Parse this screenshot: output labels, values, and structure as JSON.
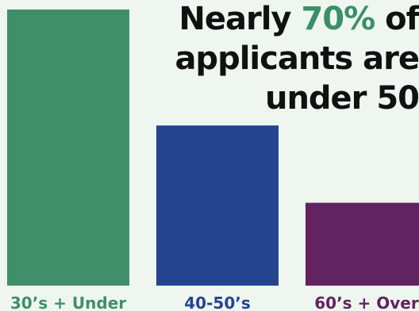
{
  "headline": {
    "line1_pre": "Nearly ",
    "line1_accent": "70%",
    "line1_post": " of",
    "line2": "applicants are",
    "line3": "under 50"
  },
  "colors": {
    "background": "#eef6ef",
    "headline_text": "#111111",
    "accent": "#3a8f69"
  },
  "chart_data": {
    "type": "bar",
    "categories": [
      "30’s + Under",
      "40-50’s",
      "60’s + Over"
    ],
    "series": [
      {
        "values": [
          100,
          58,
          30
        ]
      }
    ],
    "bar_colors": [
      "#3f8f6b",
      "#25448f",
      "#632260"
    ],
    "label_colors": [
      "#3f8f6b",
      "#25448f",
      "#632260"
    ],
    "ylim": [
      0,
      100
    ],
    "title": "",
    "xlabel": "",
    "ylabel": "",
    "grid": false,
    "legend": "none"
  }
}
